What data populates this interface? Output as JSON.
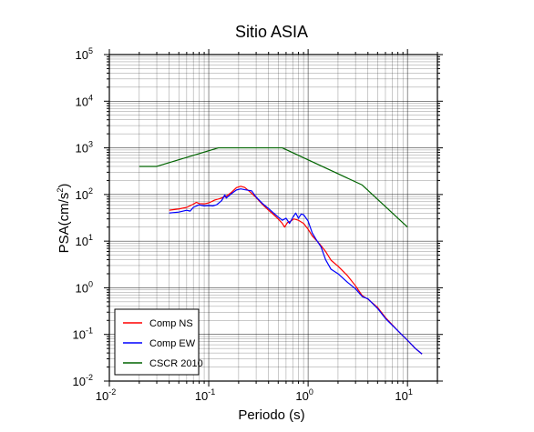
{
  "chart_data": {
    "type": "line",
    "title": "Sitio ASIA",
    "xlabel": "Periodo (s)",
    "ylabel": {
      "base": "PSA(cm/s",
      "exp": "2",
      "close": ")"
    },
    "xscale": "log",
    "yscale": "log",
    "xlim": [
      0.01,
      20
    ],
    "ylim": [
      0.01,
      100000
    ],
    "grid": true,
    "legend_position": "bottom-left",
    "x_ticks": [
      {
        "value": 0.01,
        "base": "10",
        "exp": "-2"
      },
      {
        "value": 0.1,
        "base": "10",
        "exp": "-1"
      },
      {
        "value": 1,
        "base": "10",
        "exp": "0"
      },
      {
        "value": 10,
        "base": "10",
        "exp": "1"
      }
    ],
    "y_ticks": [
      {
        "value": 0.01,
        "base": "10",
        "exp": "-2"
      },
      {
        "value": 0.1,
        "base": "10",
        "exp": "-1"
      },
      {
        "value": 1,
        "base": "10",
        "exp": "0"
      },
      {
        "value": 10,
        "base": "10",
        "exp": "1"
      },
      {
        "value": 100,
        "base": "10",
        "exp": "2"
      },
      {
        "value": 1000,
        "base": "10",
        "exp": "3"
      },
      {
        "value": 10000,
        "base": "10",
        "exp": "4"
      },
      {
        "value": 100000,
        "base": "10",
        "exp": "5"
      }
    ],
    "series": [
      {
        "name": "Comp NS",
        "color": "#ff0000",
        "points": [
          [
            0.04,
            46
          ],
          [
            0.05,
            49
          ],
          [
            0.06,
            53
          ],
          [
            0.07,
            62
          ],
          [
            0.075,
            68
          ],
          [
            0.08,
            64
          ],
          [
            0.09,
            63
          ],
          [
            0.1,
            66
          ],
          [
            0.115,
            76
          ],
          [
            0.13,
            82
          ],
          [
            0.15,
            92
          ],
          [
            0.17,
            112
          ],
          [
            0.19,
            140
          ],
          [
            0.21,
            150
          ],
          [
            0.23,
            142
          ],
          [
            0.26,
            114
          ],
          [
            0.3,
            86
          ],
          [
            0.35,
            60
          ],
          [
            0.4,
            46
          ],
          [
            0.45,
            37
          ],
          [
            0.5,
            30
          ],
          [
            0.55,
            24
          ],
          [
            0.58,
            20
          ],
          [
            0.62,
            25
          ],
          [
            0.67,
            27
          ],
          [
            0.72,
            30
          ],
          [
            0.8,
            28
          ],
          [
            0.9,
            24
          ],
          [
            1.0,
            18
          ],
          [
            1.1,
            13
          ],
          [
            1.3,
            8.8
          ],
          [
            1.5,
            6.0
          ],
          [
            1.7,
            3.9
          ],
          [
            2.0,
            2.9
          ],
          [
            2.5,
            1.8
          ],
          [
            3.0,
            1.1
          ],
          [
            3.5,
            0.68
          ],
          [
            4.0,
            0.57
          ],
          [
            5.0,
            0.38
          ],
          [
            6.0,
            0.23
          ],
          [
            8.0,
            0.12
          ],
          [
            10.0,
            0.075
          ],
          [
            12.0,
            0.05
          ],
          [
            14.0,
            0.038
          ]
        ]
      },
      {
        "name": "Comp EW",
        "color": "#0000ff",
        "points": [
          [
            0.04,
            40
          ],
          [
            0.05,
            42
          ],
          [
            0.06,
            46
          ],
          [
            0.065,
            44
          ],
          [
            0.07,
            53
          ],
          [
            0.08,
            60
          ],
          [
            0.09,
            57
          ],
          [
            0.1,
            58
          ],
          [
            0.11,
            57
          ],
          [
            0.12,
            60
          ],
          [
            0.135,
            74
          ],
          [
            0.145,
            98
          ],
          [
            0.15,
            84
          ],
          [
            0.17,
            105
          ],
          [
            0.19,
            125
          ],
          [
            0.21,
            132
          ],
          [
            0.23,
            127
          ],
          [
            0.27,
            120
          ],
          [
            0.3,
            88
          ],
          [
            0.35,
            63
          ],
          [
            0.4,
            50
          ],
          [
            0.45,
            40
          ],
          [
            0.5,
            33
          ],
          [
            0.55,
            28
          ],
          [
            0.6,
            31
          ],
          [
            0.65,
            24
          ],
          [
            0.7,
            32
          ],
          [
            0.75,
            40
          ],
          [
            0.8,
            31
          ],
          [
            0.85,
            38
          ],
          [
            0.9,
            37
          ],
          [
            1.0,
            27
          ],
          [
            1.1,
            15
          ],
          [
            1.2,
            11
          ],
          [
            1.35,
            7.5
          ],
          [
            1.5,
            4.0
          ],
          [
            1.7,
            2.5
          ],
          [
            2.0,
            2.0
          ],
          [
            2.5,
            1.3
          ],
          [
            3.0,
            0.95
          ],
          [
            3.5,
            0.65
          ],
          [
            4.0,
            0.58
          ],
          [
            5.0,
            0.36
          ],
          [
            6.0,
            0.22
          ],
          [
            8.0,
            0.12
          ],
          [
            10.0,
            0.075
          ],
          [
            12.0,
            0.05
          ],
          [
            14.0,
            0.038
          ]
        ]
      },
      {
        "name": "CSCR 2010",
        "color": "#006400",
        "points": [
          [
            0.02,
            400
          ],
          [
            0.03,
            400
          ],
          [
            0.125,
            1000
          ],
          [
            0.55,
            1000
          ],
          [
            3.5,
            160
          ],
          [
            10.0,
            20
          ]
        ]
      }
    ]
  }
}
